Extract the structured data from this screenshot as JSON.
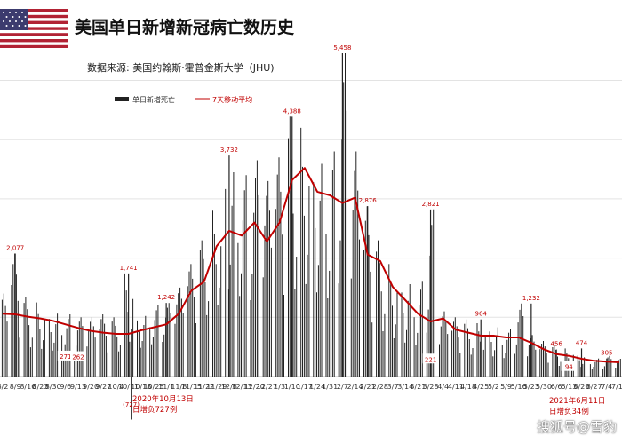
{
  "header": {
    "title": "美国单日新增新冠病亡数历史",
    "source": "数据来源:  美国约翰斯·霍普金斯大学（JHU)"
  },
  "flag": {
    "name": "us-flag-icon",
    "red": "#b22234",
    "blue": "#3c3b6e"
  },
  "watermark": "搜狐号@雪豹",
  "chart_data": {
    "type": "bar",
    "title": "美国单日新增新冠病亡数历史",
    "xlabel": "",
    "ylabel": "",
    "ylim": [
      -800,
      6000
    ],
    "grid": true,
    "legend": {
      "position": "top-left",
      "entries": [
        "单日新增死亡",
        "7天移动平均"
      ]
    },
    "colors": {
      "bars": "#222222",
      "average": "#c00000",
      "labels": "#c00000"
    },
    "x_ticks": [
      "8/2",
      "8/9",
      "8/16",
      "8/23",
      "8/30",
      "9/6",
      "9/13",
      "9/20",
      "9/27",
      "10/4",
      "10/11",
      "10/18",
      "10/25",
      "11/1",
      "11/8",
      "11/15",
      "11/22",
      "11/29",
      "12/6",
      "12/13",
      "12/20",
      "12/27",
      "1/3",
      "1/10",
      "1/17",
      "1/24",
      "1/31",
      "2/7",
      "2/14",
      "2/21",
      "2/28",
      "3/7",
      "3/14",
      "3/21",
      "3/28",
      "4/4",
      "4/11",
      "4/18",
      "4/25",
      "5/2",
      "5/9",
      "5/16",
      "5/23",
      "5/30",
      "6/6",
      "6/13",
      "6/20",
      "6/27",
      "7/4",
      "7/11"
    ],
    "series": [
      {
        "name": "单日新增死亡",
        "type": "bar",
        "weekly_peaks": [
          1400,
          2077,
          1350,
          1250,
          1150,
          1050,
          1000,
          1000,
          1050,
          1000,
          1741,
          1100,
          1200,
          1242,
          1500,
          1900,
          2300,
          2800,
          3732,
          3400,
          3650,
          3300,
          3700,
          4388,
          4200,
          3900,
          3800,
          5458,
          3800,
          2876,
          2300,
          1900,
          1700,
          1600,
          2821,
          1100,
          1000,
          964,
          900,
          900,
          800,
          1232,
          700,
          600,
          540,
          474,
          420,
          305,
          350,
          300
        ],
        "weekly_lows": [
          350,
          300,
          280,
          270,
          260,
          271,
          262,
          240,
          250,
          280,
          300,
          330,
          380,
          420,
          560,
          650,
          720,
          800,
          900,
          850,
          700,
          800,
          800,
          750,
          900,
          800,
          700,
          600,
          500,
          420,
          380,
          330,
          290,
          270,
          221,
          250,
          240,
          220,
          210,
          200,
          190,
          170,
          150,
          140,
          90,
          110,
          100,
          90,
          80,
          70
        ]
      },
      {
        "name": "7天移动平均",
        "type": "line",
        "weekly": [
          1060,
          1050,
          1010,
          980,
          940,
          880,
          820,
          770,
          740,
          720,
          720,
          780,
          830,
          880,
          1060,
          1450,
          1600,
          2200,
          2460,
          2380,
          2600,
          2280,
          2600,
          3320,
          3520,
          3120,
          3060,
          2930,
          3020,
          2060,
          1950,
          1510,
          1290,
          1060,
          930,
          980,
          790,
          740,
          690,
          690,
          660,
          660,
          570,
          460,
          380,
          350,
          300,
          265,
          250,
          240
        ]
      }
    ],
    "point_labels": [
      {
        "x": "8/9",
        "value": 2077,
        "text": "2,077"
      },
      {
        "x": "9/6",
        "value": 271,
        "text": "271"
      },
      {
        "x": "9/13",
        "value": 262,
        "text": "262"
      },
      {
        "x": "10/11",
        "value": 1741,
        "text": "1,741"
      },
      {
        "x": "10/25",
        "value": -727,
        "text": "(727)"
      },
      {
        "x": "11/1",
        "value": 1242,
        "text": "1,242"
      },
      {
        "x": "12/6",
        "value": 3732,
        "text": "3,732"
      },
      {
        "x": "1/10",
        "value": 4388,
        "text": "4,388"
      },
      {
        "x": "2/7",
        "value": 5458,
        "text": "5,458"
      },
      {
        "x": "2/21",
        "value": 2876,
        "text": "2,876"
      },
      {
        "x": "3/28",
        "value": 221,
        "text": "221"
      },
      {
        "x": "3/28",
        "value": 2821,
        "text": "2,821"
      },
      {
        "x": "4/25",
        "value": 964,
        "text": "964"
      },
      {
        "x": "5/23",
        "value": 1232,
        "text": "1,232"
      },
      {
        "x": "6/6",
        "value": 456,
        "text": "456"
      },
      {
        "x": "6/13",
        "value": 94,
        "text": "94"
      },
      {
        "x": "6/20",
        "value": 474,
        "text": "474"
      },
      {
        "x": "7/4",
        "value": 305,
        "text": "305"
      }
    ],
    "annotations": [
      {
        "x": "10/13",
        "lines": [
          "2020年10月13日",
          "日增负727例"
        ]
      },
      {
        "x": "6/11",
        "lines": [
          "2021年6月11日",
          "日增负34例"
        ]
      }
    ]
  }
}
